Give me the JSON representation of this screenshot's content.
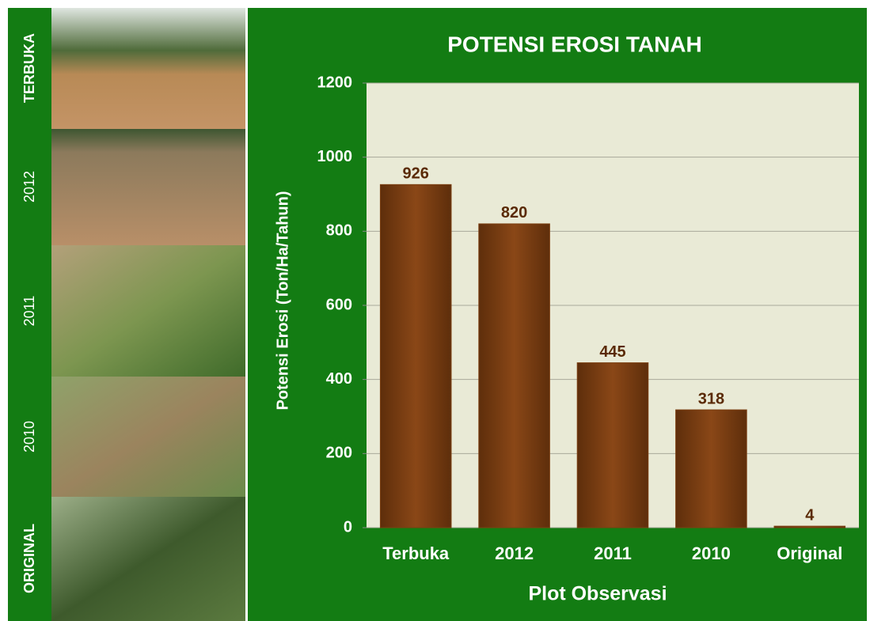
{
  "side_panel": {
    "labels": [
      "TERBUKA",
      "2012",
      "2011",
      "2010",
      "ORIGINAL"
    ]
  },
  "chart_data": {
    "type": "bar",
    "title": "POTENSI EROSI TANAH",
    "x_label": "Plot Observasi",
    "y_label": "Potensi Erosi (Ton/Ha/Tahun)",
    "categories": [
      "Terbuka",
      "2012",
      "2011",
      "2010",
      "Original"
    ],
    "values": [
      926,
      820,
      445,
      318,
      4
    ],
    "color": "#7b3f12",
    "ylim": [
      0,
      1200
    ],
    "yticks": [
      0,
      200,
      400,
      600,
      800,
      1000,
      1200
    ],
    "grid": true
  }
}
